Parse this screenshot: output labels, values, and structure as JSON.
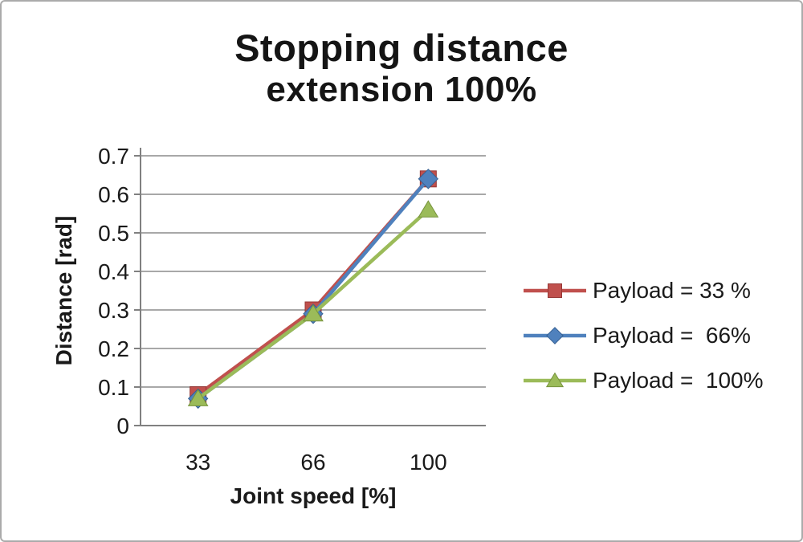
{
  "window": {
    "background": "#ffffff",
    "border_color": "#ababab"
  },
  "chart_data": {
    "type": "line",
    "title": "Stopping distance",
    "subtitle": "extension 100%",
    "xlabel": "Joint speed [%]",
    "ylabel": "Distance [rad]",
    "categories": [
      "33",
      "66",
      "100"
    ],
    "x": [
      33,
      66,
      100
    ],
    "yticks": [
      0,
      0.1,
      0.2,
      0.3,
      0.4,
      0.5,
      0.6,
      0.7
    ],
    "ylim": [
      0,
      0.7
    ],
    "grid": true,
    "grid_color": "#9c9c9c",
    "axis_color": "#808080",
    "text_color": "#1a1a1a",
    "legend_position": "right",
    "series": [
      {
        "name": "Payload = 33 %",
        "marker": "square",
        "color": "#c0504d",
        "edge_color": "#953735",
        "values": [
          0.08,
          0.3,
          0.64
        ]
      },
      {
        "name": "Payload =  66%",
        "marker": "diamond",
        "color": "#4f81bd",
        "edge_color": "#366092",
        "values": [
          0.07,
          0.29,
          0.64
        ]
      },
      {
        "name": "Payload =  100%",
        "marker": "triangle",
        "color": "#9bbb59",
        "edge_color": "#77933c",
        "values": [
          0.07,
          0.29,
          0.56
        ]
      }
    ]
  }
}
